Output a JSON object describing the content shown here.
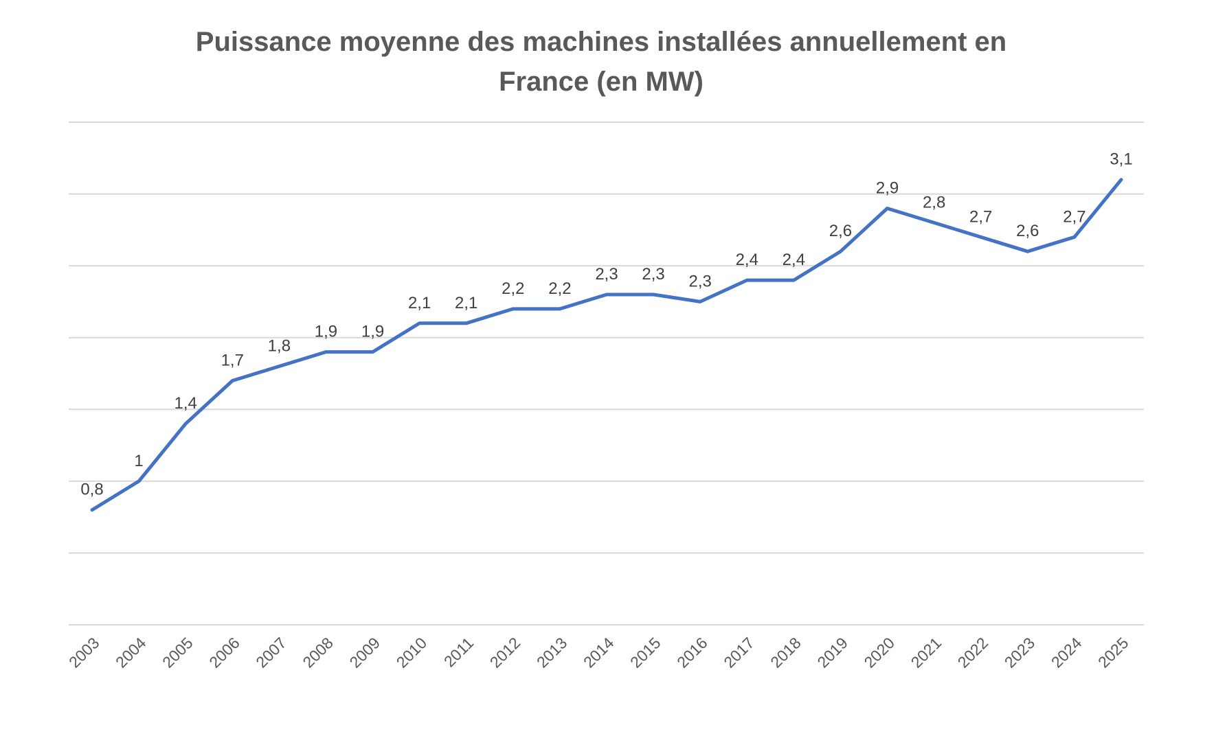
{
  "chart_data": {
    "type": "line",
    "title_lines": [
      "Puissance moyenne des machines installées annuellement en",
      "France (en MW)"
    ],
    "categories": [
      "2003",
      "2004",
      "2005",
      "2006",
      "2007",
      "2008",
      "2009",
      "2010",
      "2011",
      "2012",
      "2013",
      "2014",
      "2015",
      "2016",
      "2017",
      "2018",
      "2019",
      "2020",
      "2021",
      "2022",
      "2023",
      "2024",
      "2025"
    ],
    "values": [
      0.8,
      1.0,
      1.4,
      1.7,
      1.8,
      1.9,
      1.9,
      2.1,
      2.1,
      2.2,
      2.2,
      2.3,
      2.3,
      2.25,
      2.4,
      2.4,
      2.6,
      2.9,
      2.8,
      2.7,
      2.6,
      2.7,
      3.1
    ],
    "data_labels": [
      "0,8",
      "1",
      "1,4",
      "1,7",
      "1,8",
      "1,9",
      "1,9",
      "2,1",
      "2,1",
      "2,2",
      "2,2",
      "2,3",
      "2,3",
      "2,3",
      "2,4",
      "2,4",
      "2,6",
      "2,9",
      "2,8",
      "2,7",
      "2,6",
      "2,7",
      "3,1"
    ],
    "ylim": [
      0,
      3.5
    ],
    "gridlines": [
      0,
      0.5,
      1.0,
      1.5,
      2.0,
      2.5,
      3.0,
      3.5
    ],
    "grid": true,
    "y_tick_labels_shown": false,
    "series_color": "#4472c4",
    "xlabel": "",
    "ylabel": ""
  }
}
